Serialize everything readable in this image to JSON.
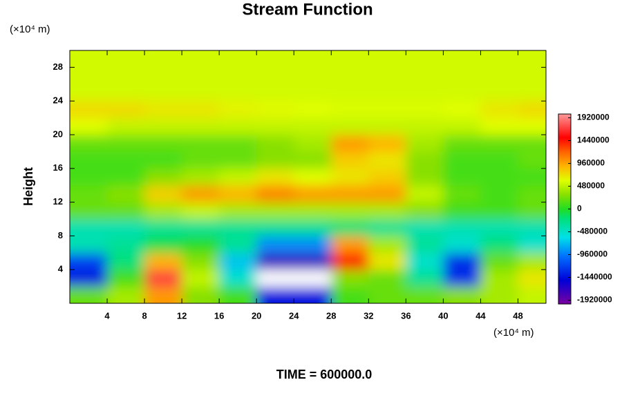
{
  "chart_data": {
    "type": "contour",
    "title": "Stream Function",
    "ylabel": "Height",
    "y_unit": "(×10⁴ m)",
    "x_unit": "(×10⁴ m)",
    "annotation": "TIME = 600000.0",
    "xlim": [
      0,
      51
    ],
    "ylim": [
      0,
      30
    ],
    "xticks": [
      4,
      8,
      12,
      16,
      20,
      24,
      28,
      32,
      36,
      40,
      44,
      48
    ],
    "yticks": [
      4,
      8,
      12,
      16,
      20,
      24,
      28
    ],
    "x": [
      2,
      6,
      10,
      14,
      18,
      22,
      26,
      30,
      34,
      38,
      42,
      46,
      50
    ],
    "y": [
      1,
      3,
      5,
      7,
      9,
      11,
      13,
      15,
      17,
      19,
      21,
      23,
      25,
      27,
      29
    ],
    "z": [
      [
        200000,
        400000,
        1000000,
        300000,
        100000,
        -1400000,
        -1400000,
        100000,
        200000,
        200000,
        300000,
        400000,
        500000
      ],
      [
        -1400000,
        100000,
        1700000,
        500000,
        -500000,
        -2300000,
        -2300000,
        300000,
        200000,
        -300000,
        -1300000,
        400000,
        700000
      ],
      [
        -1200000,
        -200000,
        900000,
        300000,
        -700000,
        -1700000,
        -1700000,
        1500000,
        700000,
        -500000,
        -1300000,
        200000,
        400000
      ],
      [
        -400000,
        -300000,
        -100000,
        0,
        -300000,
        -900000,
        -900000,
        1000000,
        400000,
        -300000,
        -500000,
        -200000,
        -500000
      ],
      [
        -400000,
        -400000,
        -300000,
        -300000,
        -300000,
        -300000,
        -300000,
        -200000,
        -300000,
        -400000,
        -400000,
        -400000,
        -400000
      ],
      [
        200000,
        200000,
        400000,
        500000,
        400000,
        400000,
        400000,
        400000,
        400000,
        300000,
        100000,
        100000,
        200000
      ],
      [
        200000,
        300000,
        800000,
        1000000,
        900000,
        1100000,
        1000000,
        1000000,
        1000000,
        500000,
        200000,
        100000,
        200000
      ],
      [
        100000,
        100000,
        300000,
        400000,
        500000,
        700000,
        600000,
        700000,
        800000,
        300000,
        100000,
        100000,
        100000
      ],
      [
        100000,
        100000,
        100000,
        200000,
        200000,
        300000,
        300000,
        800000,
        700000,
        300000,
        100000,
        100000,
        200000
      ],
      [
        200000,
        200000,
        200000,
        200000,
        200000,
        300000,
        400000,
        1000000,
        900000,
        400000,
        200000,
        200000,
        200000
      ],
      [
        600000,
        500000,
        500000,
        500000,
        500000,
        500000,
        500000,
        500000,
        500000,
        500000,
        500000,
        600000,
        600000
      ],
      [
        750000,
        750000,
        700000,
        700000,
        650000,
        620000,
        600000,
        580000,
        580000,
        580000,
        600000,
        700000,
        750000
      ],
      [
        550000,
        550000,
        550000,
        550000,
        550000,
        550000,
        550000,
        550000,
        550000,
        550000,
        550000,
        550000,
        550000
      ],
      [
        550000,
        550000,
        550000,
        550000,
        550000,
        550000,
        550000,
        550000,
        550000,
        550000,
        550000,
        550000,
        550000
      ],
      [
        550000,
        550000,
        550000,
        550000,
        550000,
        550000,
        550000,
        550000,
        550000,
        550000,
        550000,
        550000,
        550000
      ]
    ],
    "clim": [
      -2000000,
      2000000
    ],
    "out_of_range_color": "#ffffff",
    "colorscale": [
      [
        -2000000,
        "#7a00a0"
      ],
      [
        -1500000,
        "#0000d8"
      ],
      [
        -1000000,
        "#0070ff"
      ],
      [
        -600000,
        "#00e0e8"
      ],
      [
        -200000,
        "#00e07a"
      ],
      [
        0,
        "#22dd22"
      ],
      [
        300000,
        "#88e000"
      ],
      [
        600000,
        "#e0ff00"
      ],
      [
        900000,
        "#ffb400"
      ],
      [
        1200000,
        "#ff6400"
      ],
      [
        1500000,
        "#ff0000"
      ],
      [
        2000000,
        "#ff9a9a"
      ]
    ],
    "colorbar_ticks": [
      1920000,
      1440000,
      960000,
      480000,
      0,
      -480000,
      -960000,
      -1440000,
      -1920000
    ]
  }
}
